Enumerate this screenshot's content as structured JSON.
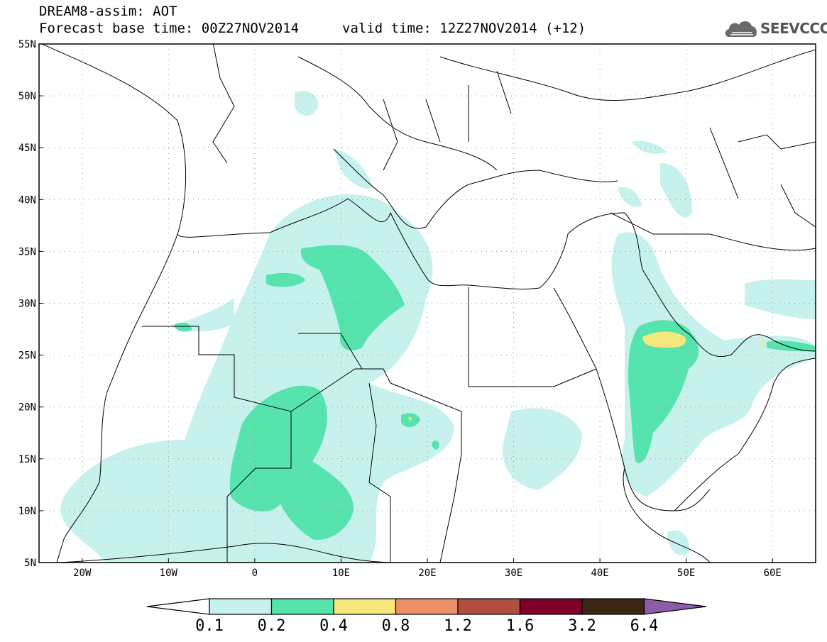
{
  "header": {
    "line1": "DREAM8-assim: AOT",
    "line2": "Forecast base time: 00Z27NOV2014",
    "line3": "valid time: 12Z27NOV2014 (+12)"
  },
  "logo": {
    "text": "SEEVCCC",
    "icon": "cloud-icon"
  },
  "map": {
    "lat_labels": [
      "55N",
      "50N",
      "45N",
      "40N",
      "35N",
      "30N",
      "25N",
      "20N",
      "15N",
      "10N",
      "5N"
    ],
    "lon_labels": [
      "20W",
      "10W",
      "0",
      "10E",
      "20E",
      "30E",
      "40E",
      "50E",
      "60E"
    ],
    "lat_range": [
      5,
      55
    ],
    "lon_range": [
      -25,
      65
    ],
    "gridlines": "dotted"
  },
  "legend": {
    "levels": [
      "0.1",
      "0.2",
      "0.4",
      "0.8",
      "1.2",
      "1.6",
      "3.2",
      "6.4"
    ],
    "colors": [
      "#ffffff",
      "#c7f1ec",
      "#56e3ae",
      "#f5e77b",
      "#ec9068",
      "#b04e3f",
      "#7e0029",
      "#3b2513",
      "#8c5ca6"
    ]
  }
}
